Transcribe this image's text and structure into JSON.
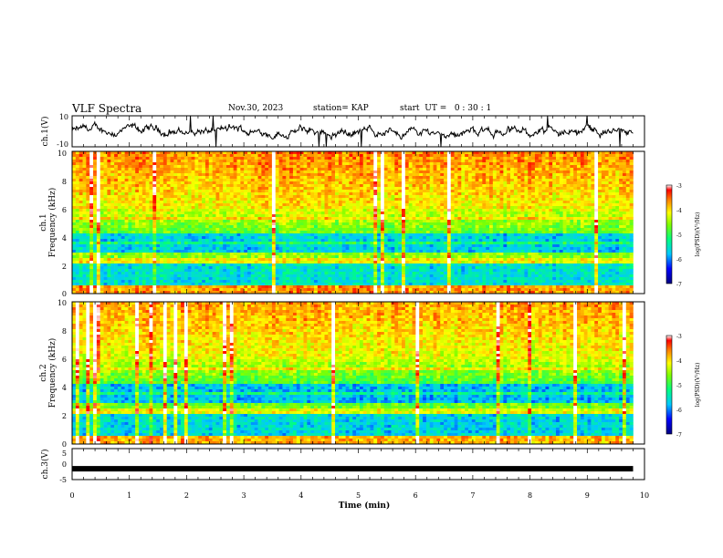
{
  "header": {
    "title": "VLF Spectra",
    "date": "Nov.30, 2023",
    "station": "station= KAP",
    "start": "start  UT =   0 : 30 : 1"
  },
  "chart_data": [
    {
      "type": "line",
      "id": "ch1-waveform",
      "ylabel": "ch.1(V)",
      "ylim": [
        -10,
        10
      ],
      "xlim": [
        0,
        10
      ],
      "yticks": [
        "10",
        "-10"
      ],
      "description_color": "#000000"
    },
    {
      "type": "heatmap",
      "id": "ch1-spectrogram",
      "ylabel_top": "ch.1",
      "ylabel": "Frequency (kHz)",
      "ylim": [
        0,
        10
      ],
      "yticks": [
        "0",
        "2",
        "4",
        "6",
        "8",
        "10"
      ],
      "colorbar": {
        "label": "log(PSD)(V²/Hz)",
        "range": [
          -7,
          -3
        ],
        "ticks": [
          "-3",
          "-4",
          "-5",
          "-6",
          "-7"
        ]
      }
    },
    {
      "type": "heatmap",
      "id": "ch2-spectrogram",
      "ylabel_top": "ch.2",
      "ylabel": "Frequency (kHz)",
      "ylim": [
        0,
        10
      ],
      "yticks": [
        "0",
        "2",
        "4",
        "6",
        "8",
        "10"
      ],
      "colorbar": {
        "label": "log(PSD)(V²/Hz)",
        "range": [
          -7,
          -3
        ],
        "ticks": [
          "-3",
          "-4",
          "-5",
          "-6",
          "-7"
        ]
      }
    },
    {
      "type": "line",
      "id": "ch3-level",
      "ylabel": "ch.3(V)",
      "ylim": [
        -5,
        5
      ],
      "yticks": [
        "5",
        "0",
        "-5"
      ],
      "x": [
        0,
        9.8
      ],
      "y": [
        -1.5,
        -1.5
      ]
    }
  ],
  "xaxis": {
    "label": "Time (min)",
    "ticks": [
      "0",
      "1",
      "2",
      "3",
      "4",
      "5",
      "6",
      "7",
      "8",
      "9",
      "10"
    ],
    "xlim": [
      0,
      10
    ],
    "data_end": 9.8
  },
  "colors": {
    "colormap": [
      "#000080",
      "#0000ff",
      "#00c8ff",
      "#00ff80",
      "#80ff00",
      "#ffff00",
      "#ff8000",
      "#ff0000",
      "#ffffff"
    ]
  }
}
